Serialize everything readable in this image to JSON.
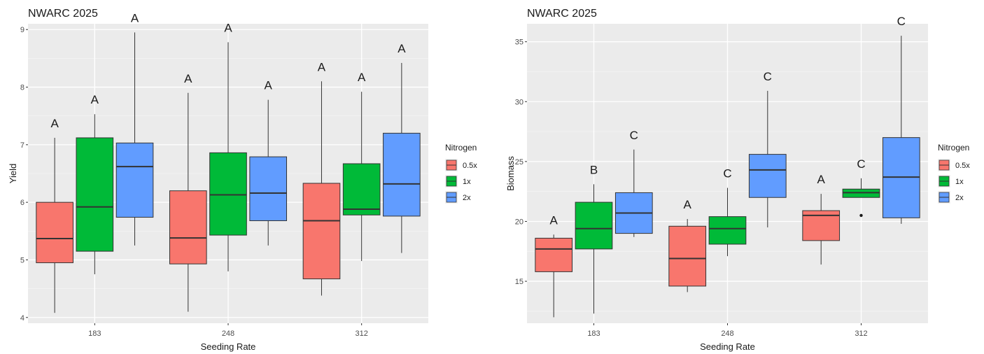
{
  "chart_data": [
    {
      "type": "boxplot",
      "title": "NWARC 2025",
      "xlabel": "Seeding Rate",
      "ylabel": "Yield",
      "ylim": [
        3.9,
        9.1
      ],
      "yticks": [
        4,
        5,
        6,
        7,
        8,
        9
      ],
      "categories": [
        "183",
        "248",
        "312"
      ],
      "legend": {
        "title": "Nitrogen",
        "position": "right",
        "labels": [
          "0.5x",
          "1x",
          "2x"
        ]
      },
      "series": [
        {
          "name": "0.5x",
          "color": "#F8766D",
          "boxes": [
            {
              "min": 4.08,
              "q1": 4.95,
              "median": 5.37,
              "q3": 6.0,
              "max": 7.12,
              "outliers": [],
              "letter": "A"
            },
            {
              "min": 4.1,
              "q1": 4.93,
              "median": 5.38,
              "q3": 6.2,
              "max": 7.9,
              "outliers": [],
              "letter": "A"
            },
            {
              "min": 4.38,
              "q1": 4.67,
              "median": 5.68,
              "q3": 6.33,
              "max": 8.1,
              "outliers": [],
              "letter": "A"
            }
          ]
        },
        {
          "name": "1x",
          "color": "#00BA38",
          "boxes": [
            {
              "min": 4.75,
              "q1": 5.15,
              "median": 5.92,
              "q3": 7.12,
              "max": 7.53,
              "outliers": [],
              "letter": "A"
            },
            {
              "min": 4.8,
              "q1": 5.43,
              "median": 6.13,
              "q3": 6.86,
              "max": 8.78,
              "outliers": [],
              "letter": "A"
            },
            {
              "min": 4.98,
              "q1": 5.78,
              "median": 5.88,
              "q3": 6.67,
              "max": 7.92,
              "outliers": [],
              "letter": "A"
            }
          ]
        },
        {
          "name": "2x",
          "color": "#619CFF",
          "boxes": [
            {
              "min": 5.25,
              "q1": 5.74,
              "median": 6.62,
              "q3": 7.03,
              "max": 8.95,
              "outliers": [],
              "letter": "A"
            },
            {
              "min": 5.25,
              "q1": 5.68,
              "median": 6.16,
              "q3": 6.79,
              "max": 7.78,
              "outliers": [],
              "letter": "A"
            },
            {
              "min": 5.12,
              "q1": 5.76,
              "median": 6.32,
              "q3": 7.2,
              "max": 8.42,
              "outliers": [],
              "letter": "A"
            }
          ]
        }
      ]
    },
    {
      "type": "boxplot",
      "title": "NWARC 2025",
      "xlabel": "Seeding Rate",
      "ylabel": "Biomass",
      "ylim": [
        11.5,
        36.5
      ],
      "yticks": [
        15,
        20,
        25,
        30,
        35
      ],
      "categories": [
        "183",
        "248",
        "312"
      ],
      "legend": {
        "title": "Nitrogen",
        "position": "right",
        "labels": [
          "0.5x",
          "1x",
          "2x"
        ]
      },
      "series": [
        {
          "name": "0.5x",
          "color": "#F8766D",
          "boxes": [
            {
              "min": 12.0,
              "q1": 15.8,
              "median": 17.7,
              "q3": 18.6,
              "max": 18.9,
              "outliers": [],
              "letter": "A"
            },
            {
              "min": 14.1,
              "q1": 14.6,
              "median": 16.9,
              "q3": 19.6,
              "max": 20.2,
              "outliers": [],
              "letter": "A"
            },
            {
              "min": 16.4,
              "q1": 18.4,
              "median": 20.5,
              "q3": 20.9,
              "max": 22.3,
              "outliers": [],
              "letter": "A"
            }
          ]
        },
        {
          "name": "1x",
          "color": "#00BA38",
          "boxes": [
            {
              "min": 12.3,
              "q1": 17.7,
              "median": 19.4,
              "q3": 21.6,
              "max": 23.1,
              "outliers": [],
              "letter": "B"
            },
            {
              "min": 17.1,
              "q1": 18.1,
              "median": 19.4,
              "q3": 20.4,
              "max": 22.8,
              "outliers": [],
              "letter": "C"
            },
            {
              "min": 22.0,
              "q1": 22.0,
              "median": 22.4,
              "q3": 22.7,
              "max": 23.6,
              "outliers": [
                20.5
              ],
              "letter": "C"
            }
          ]
        },
        {
          "name": "2x",
          "color": "#619CFF",
          "boxes": [
            {
              "min": 18.7,
              "q1": 19.0,
              "median": 20.7,
              "q3": 22.4,
              "max": 26.0,
              "outliers": [],
              "letter": "C"
            },
            {
              "min": 19.5,
              "q1": 22.0,
              "median": 24.3,
              "q3": 25.6,
              "max": 30.9,
              "outliers": [],
              "letter": "C"
            },
            {
              "min": 19.8,
              "q1": 20.3,
              "median": 23.7,
              "q3": 27.0,
              "max": 35.5,
              "outliers": [],
              "letter": "C"
            }
          ]
        }
      ]
    }
  ]
}
